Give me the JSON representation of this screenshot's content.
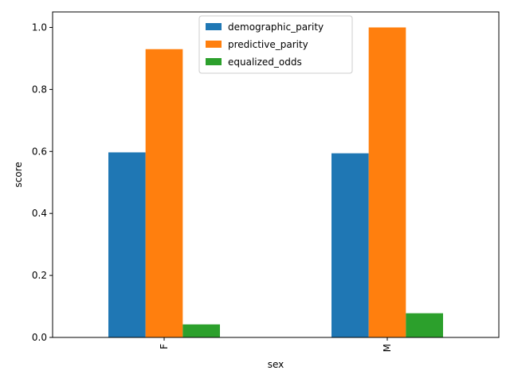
{
  "chart_data": {
    "type": "bar",
    "title": "",
    "xlabel": "sex",
    "ylabel": "score",
    "categories": [
      "F",
      "M"
    ],
    "series": [
      {
        "name": "demographic_parity",
        "values": [
          0.597,
          0.594
        ],
        "color": "#1f77b4"
      },
      {
        "name": "predictive_parity",
        "values": [
          0.93,
          1.0
        ],
        "color": "#ff7f0e"
      },
      {
        "name": "equalized_odds",
        "values": [
          0.042,
          0.078
        ],
        "color": "#2ca02c"
      }
    ],
    "ylim": [
      0,
      1.05
    ],
    "yticks": [
      "0.0",
      "0.2",
      "0.4",
      "0.6",
      "0.8",
      "1.0"
    ],
    "grid": false,
    "legend_position": "upper-center"
  }
}
